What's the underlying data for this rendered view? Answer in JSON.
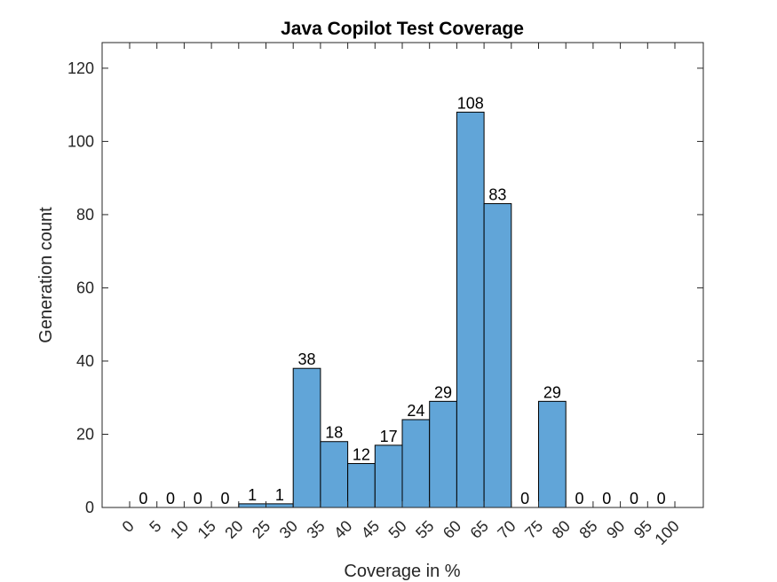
{
  "chart_data": {
    "type": "bar",
    "title": "Java Copilot Test Coverage",
    "xlabel": "Coverage in %",
    "ylabel": "Generation count",
    "ylim": [
      0,
      127
    ],
    "yticks": [
      0,
      20,
      40,
      60,
      80,
      100,
      120
    ],
    "xticks": [
      "0",
      "5",
      "10",
      "15",
      "20",
      "25",
      "30",
      "35",
      "40",
      "45",
      "50",
      "55",
      "60",
      "65",
      "70",
      "75",
      "80",
      "85",
      "90",
      "95",
      "100"
    ],
    "categories": [
      "0",
      "5",
      "10",
      "15",
      "20",
      "25",
      "30",
      "35",
      "40",
      "45",
      "50",
      "55",
      "60",
      "65",
      "70",
      "75",
      "80",
      "85",
      "90",
      "95"
    ],
    "values": [
      0,
      0,
      0,
      0,
      1,
      1,
      38,
      18,
      12,
      17,
      24,
      29,
      108,
      83,
      0,
      29,
      0,
      0,
      0,
      0
    ],
    "bar_color": "#61a5d8",
    "grid": false,
    "legend": "none"
  }
}
